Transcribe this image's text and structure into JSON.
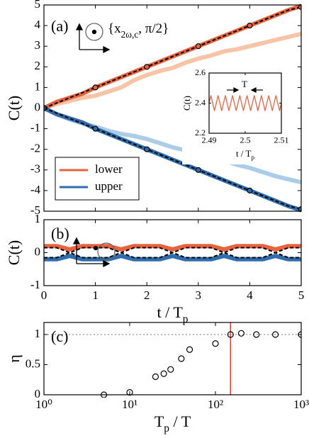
{
  "chart_data": [
    {
      "type": "line",
      "panel_label": "(a)",
      "ylabel": "C(t)",
      "annotation": {
        "text": "{x",
        "sub": "2ω,c",
        "tail": ", π/2}"
      },
      "xlim": [
        0,
        5
      ],
      "ylim": [
        -5,
        5
      ],
      "xticks": [
        0,
        1,
        2,
        3,
        4,
        5
      ],
      "yticks": [
        -5,
        -4,
        -3,
        -2,
        -1,
        0,
        1,
        2,
        3,
        4,
        5
      ],
      "show_xticklabels": false,
      "legend": "lower left",
      "x": [
        0,
        0.25,
        0.5,
        0.75,
        1,
        1.25,
        1.5,
        1.75,
        2,
        2.25,
        2.5,
        2.75,
        3,
        3.25,
        3.5,
        3.75,
        4,
        4.25,
        4.5,
        4.75,
        5
      ],
      "series": [
        {
          "style": "line",
          "color": "#f7c4a6",
          "width": 6,
          "values": [
            0,
            0.2,
            0.35,
            0.5,
            0.6,
            0.8,
            1.0,
            1.35,
            1.6,
            1.8,
            1.95,
            2.2,
            2.4,
            2.55,
            2.75,
            2.85,
            3.0,
            3.15,
            3.3,
            3.45,
            3.6
          ]
        },
        {
          "style": "line",
          "color": "#abcde8",
          "width": 6,
          "values": [
            0,
            -0.3,
            -0.55,
            -0.75,
            -0.9,
            -1.1,
            -1.25,
            -1.35,
            -1.5,
            -1.7,
            -1.9,
            -2.05,
            -2.2,
            -2.4,
            -2.55,
            -2.75,
            -2.9,
            -3.1,
            -3.3,
            -3.45,
            -3.6
          ]
        },
        {
          "name": "lower",
          "style": "line",
          "color": "#e8633d",
          "width": 6,
          "values": [
            0,
            0.3,
            0.5,
            0.7,
            1.0,
            1.25,
            1.5,
            1.75,
            2.0,
            2.25,
            2.5,
            2.75,
            3.0,
            3.25,
            3.5,
            3.75,
            4.0,
            4.25,
            4.5,
            4.75,
            4.95
          ]
        },
        {
          "name": "upper",
          "style": "line",
          "color": "#2e6eaf",
          "width": 6,
          "values": [
            0,
            -0.3,
            -0.5,
            -0.7,
            -1.0,
            -1.25,
            -1.5,
            -1.75,
            -2.0,
            -2.25,
            -2.5,
            -2.75,
            -3.0,
            -3.25,
            -3.5,
            -3.75,
            -4.0,
            -4.25,
            -4.5,
            -4.75,
            -4.95
          ]
        },
        {
          "style": "dashed",
          "color": "#000000",
          "width": 2,
          "values": [
            0,
            0.25,
            0.5,
            0.75,
            1.0,
            1.25,
            1.5,
            1.75,
            2.0,
            2.25,
            2.5,
            2.75,
            3.0,
            3.25,
            3.5,
            3.75,
            4.0,
            4.25,
            4.5,
            4.75,
            4.9
          ]
        },
        {
          "style": "dashed",
          "color": "#000000",
          "width": 2,
          "values": [
            0,
            -0.25,
            -0.5,
            -0.75,
            -1.0,
            -1.25,
            -1.5,
            -1.75,
            -2.0,
            -2.25,
            -2.5,
            -2.75,
            -3.0,
            -3.25,
            -3.5,
            -3.75,
            -4.0,
            -4.25,
            -4.5,
            -4.75,
            -4.9
          ]
        },
        {
          "style": "markers",
          "color": "#e8633d",
          "x": [
            0,
            1,
            2,
            3,
            4,
            5
          ],
          "values": [
            0,
            1,
            2,
            3,
            4,
            4.9
          ]
        },
        {
          "style": "markers",
          "color": "#2e6eaf",
          "x": [
            0,
            1,
            2,
            3,
            4,
            5
          ],
          "values": [
            0,
            -1,
            -2,
            -3,
            -4,
            -4.9
          ]
        }
      ]
    },
    {
      "type": "line",
      "ylabel": "C(t)",
      "xlabel": "t / T",
      "xlabel_sub": "p",
      "annotation": {
        "text": "T"
      },
      "xlim": [
        2.49,
        2.51
      ],
      "ylim": [
        2.2,
        2.6
      ],
      "xticks": [
        2.49,
        2.5,
        2.51
      ],
      "yticks": [
        2.2,
        2.4,
        2.6
      ],
      "x": [
        2.49,
        2.4905,
        2.491,
        2.4915,
        2.492,
        2.4925,
        2.493,
        2.4935,
        2.494,
        2.4945,
        2.495,
        2.4955,
        2.496,
        2.4965,
        2.497,
        2.4975,
        2.498,
        2.4985,
        2.499,
        2.4995,
        2.5,
        2.5005,
        2.501,
        2.5015,
        2.502,
        2.5025,
        2.503,
        2.5035,
        2.504,
        2.5045,
        2.505,
        2.5055,
        2.506,
        2.5065,
        2.507,
        2.5075,
        2.508,
        2.5085,
        2.509,
        2.5095,
        2.51
      ],
      "series": [
        {
          "style": "line",
          "color": "#e8633d",
          "width": 1.3,
          "values": [
            2.4,
            2.45,
            2.4,
            2.35,
            2.4,
            2.45,
            2.4,
            2.35,
            2.4,
            2.45,
            2.4,
            2.35,
            2.4,
            2.45,
            2.4,
            2.35,
            2.4,
            2.45,
            2.4,
            2.35,
            2.4,
            2.45,
            2.4,
            2.35,
            2.4,
            2.45,
            2.4,
            2.35,
            2.4,
            2.45,
            2.4,
            2.35,
            2.4,
            2.45,
            2.4,
            2.35,
            2.4,
            2.45,
            2.4,
            2.35,
            2.4
          ]
        }
      ]
    },
    {
      "type": "line",
      "panel_label": "(b)",
      "ylabel": "C(t)",
      "xlabel": "t / T",
      "xlabel_sub": "p",
      "xlim": [
        0,
        5
      ],
      "ylim": [
        -1,
        1
      ],
      "xticks": [
        0,
        1,
        2,
        3,
        4,
        5
      ],
      "yticks": [
        -1,
        0,
        1
      ],
      "x": [
        0,
        0.25,
        0.5,
        0.75,
        1,
        1.25,
        1.5,
        1.75,
        2,
        2.25,
        2.5,
        2.75,
        3,
        3.25,
        3.5,
        3.75,
        4,
        4.25,
        4.5,
        4.75,
        5
      ],
      "series": [
        {
          "style": "line",
          "color": "#e8633d",
          "width": 6,
          "values": [
            0.2,
            0.2,
            0.1,
            0.2,
            0.2,
            0.2,
            0.1,
            0.2,
            0.2,
            0.2,
            0.1,
            0.2,
            0.2,
            0.2,
            0.1,
            0.2,
            0.2,
            0.2,
            0.1,
            0.2,
            0.2
          ]
        },
        {
          "style": "line",
          "color": "#2e6eaf",
          "width": 6,
          "values": [
            -0.2,
            -0.2,
            -0.1,
            -0.2,
            -0.2,
            -0.2,
            -0.1,
            -0.2,
            -0.2,
            -0.2,
            -0.1,
            -0.2,
            -0.2,
            -0.2,
            -0.1,
            -0.2,
            -0.2,
            -0.2,
            -0.1,
            -0.2,
            -0.2
          ]
        },
        {
          "style": "dashed",
          "color": "#000000",
          "width": 2,
          "values": [
            0.15,
            0.15,
            0,
            0.15,
            0.15,
            0.15,
            0,
            0.15,
            0.15,
            0.15,
            0,
            0.15,
            0.15,
            0.15,
            0,
            0.15,
            0.15,
            0.15,
            0,
            0.15,
            0.15
          ]
        },
        {
          "style": "dashed",
          "color": "#000000",
          "width": 2,
          "values": [
            -0.15,
            -0.15,
            0,
            -0.15,
            -0.15,
            -0.15,
            0,
            -0.15,
            -0.15,
            -0.15,
            0,
            -0.15,
            -0.15,
            -0.15,
            0,
            -0.15,
            -0.15,
            -0.15,
            0,
            -0.15,
            -0.15
          ]
        }
      ]
    },
    {
      "type": "scatter",
      "panel_label": "(c)",
      "ylabel": "η",
      "xlabel": "T",
      "xlabel_sub": "p",
      "xlabel_tail": " / T",
      "xlog": true,
      "xlim": [
        1,
        1000
      ],
      "ylim": [
        0,
        1.2
      ],
      "xticks": [
        {
          "value": 1,
          "label": "10⁰"
        },
        {
          "value": 10,
          "label": "10¹"
        },
        {
          "value": 100,
          "label": "10²"
        },
        {
          "value": 1000,
          "label": "10³"
        }
      ],
      "yticks": [
        0,
        0.5,
        1
      ],
      "vline": 150,
      "vline_color": "#e8342a",
      "hline": 1,
      "series": [
        {
          "style": "markers",
          "color": "#000000",
          "x": [
            5,
            10,
            20,
            25,
            30,
            40,
            50,
            100,
            150,
            200,
            300,
            500,
            1000
          ],
          "values": [
            0,
            0.04,
            0.3,
            0.35,
            0.42,
            0.6,
            0.75,
            0.85,
            1.0,
            1.02,
            1.0,
            1.0,
            1.0
          ]
        }
      ]
    }
  ]
}
